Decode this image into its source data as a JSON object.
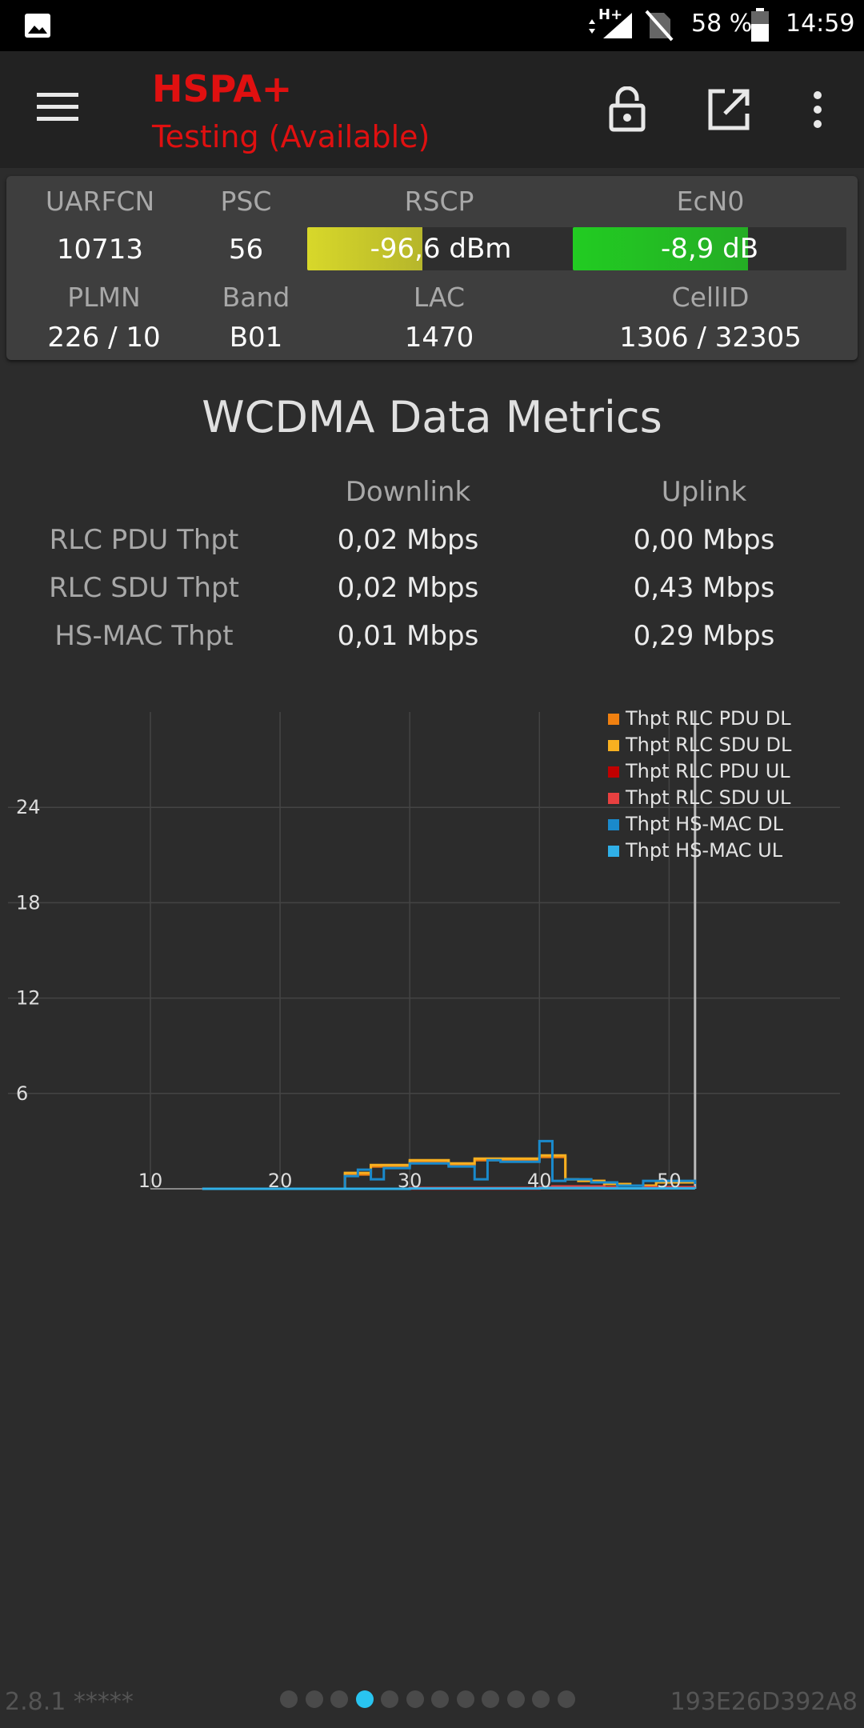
{
  "status_bar": {
    "network_type": "H+",
    "battery": "58 %",
    "time": "14:59",
    "icons": [
      "image-notification-icon",
      "data-arrows-icon",
      "signal-icon",
      "no-sim-icon",
      "battery-icon"
    ]
  },
  "toolbar": {
    "technology": "HSPA+",
    "status": "Testing (Available)",
    "accent": "#e01010",
    "icons": [
      "menu-icon",
      "lock-icon",
      "open-external-icon",
      "more-vert-icon"
    ]
  },
  "cell_info": {
    "headers1": [
      "UARFCN",
      "PSC",
      "RSCP",
      "EcN0"
    ],
    "uarfcn": "10713",
    "psc": "56",
    "rscp": {
      "label": "-96,6 dBm",
      "fill_fraction": 0.43,
      "color": "#d8d82a"
    },
    "ecn0": {
      "label": "-8,9 dB",
      "fill_fraction": 0.64,
      "color": "#22cc22"
    },
    "headers2": [
      "PLMN",
      "Band",
      "LAC",
      "CellID"
    ],
    "plmn": "226 / 10",
    "band": "B01",
    "lac": "1470",
    "cellid": "1306 / 32305"
  },
  "metrics": {
    "title": "WCDMA Data Metrics",
    "col_downlink": "Downlink",
    "col_uplink": "Uplink",
    "rows": [
      {
        "label": "RLC PDU Thpt",
        "downlink": "0,02 Mbps",
        "uplink": "0,00 Mbps"
      },
      {
        "label": "RLC SDU Thpt",
        "downlink": "0,02 Mbps",
        "uplink": "0,43 Mbps"
      },
      {
        "label": "HS-MAC Thpt",
        "downlink": "0,01 Mbps",
        "uplink": "0,29 Mbps"
      }
    ]
  },
  "chart_data": {
    "type": "line",
    "title": "",
    "xlabel": "",
    "ylabel": "",
    "x_ticks": [
      10,
      20,
      30,
      40,
      50
    ],
    "y_ticks": [
      6,
      12,
      18,
      24
    ],
    "xlim": [
      10,
      52
    ],
    "ylim": [
      0,
      30
    ],
    "grid": true,
    "legend_position": "top-right",
    "series": [
      {
        "name": "Thpt RLC PDU DL",
        "color": "#f08010",
        "x": [
          14,
          24,
          25,
          27,
          30,
          33,
          35,
          37,
          40,
          42,
          43,
          45,
          47,
          49,
          52
        ],
        "y": [
          0,
          0,
          0.9,
          1.4,
          1.7,
          1.5,
          1.8,
          1.8,
          2.0,
          0.6,
          0.5,
          0.3,
          0.2,
          0.4,
          0.3
        ]
      },
      {
        "name": "Thpt RLC SDU DL",
        "color": "#f8b020",
        "x": [
          14,
          24,
          25,
          27,
          30,
          33,
          35,
          37,
          40,
          42,
          43,
          45,
          47,
          49,
          52
        ],
        "y": [
          0,
          0,
          1.0,
          1.5,
          1.8,
          1.6,
          1.9,
          1.9,
          2.1,
          0.6,
          0.5,
          0.3,
          0.2,
          0.4,
          0.3
        ]
      },
      {
        "name": "Thpt RLC PDU UL",
        "color": "#c00000",
        "x": [
          14,
          30,
          40,
          41,
          45,
          46,
          48,
          52
        ],
        "y": [
          0,
          0,
          0.05,
          0.1,
          0.05,
          0.2,
          0.05,
          0.05
        ]
      },
      {
        "name": "Thpt RLC SDU UL",
        "color": "#e84040",
        "x": [
          14,
          30,
          40,
          41,
          45,
          46,
          48,
          52
        ],
        "y": [
          0,
          0.05,
          0.1,
          0.15,
          0.1,
          0.2,
          0.1,
          0.1
        ]
      },
      {
        "name": "Thpt HS-MAC DL",
        "color": "#1a8acc",
        "x": [
          14,
          24,
          25,
          26,
          27,
          28,
          30,
          33,
          35,
          36,
          37,
          40,
          41,
          42,
          44,
          46,
          48,
          52
        ],
        "y": [
          0,
          0,
          0.8,
          1.2,
          0.6,
          1.3,
          1.6,
          1.4,
          0.6,
          1.8,
          1.7,
          3.0,
          0.5,
          0.6,
          0.4,
          0.2,
          0.5,
          0.3
        ]
      },
      {
        "name": "Thpt HS-MAC UL",
        "color": "#30b0e8",
        "x": [
          14,
          30,
          40,
          45,
          52
        ],
        "y": [
          0,
          0.02,
          0.05,
          0.03,
          0.02
        ]
      }
    ]
  },
  "footer": {
    "version": "2.8.1 *****",
    "device_id": "193E26D392A8",
    "page_count": 12,
    "active_page": 4,
    "active_color": "#29c4f0"
  }
}
